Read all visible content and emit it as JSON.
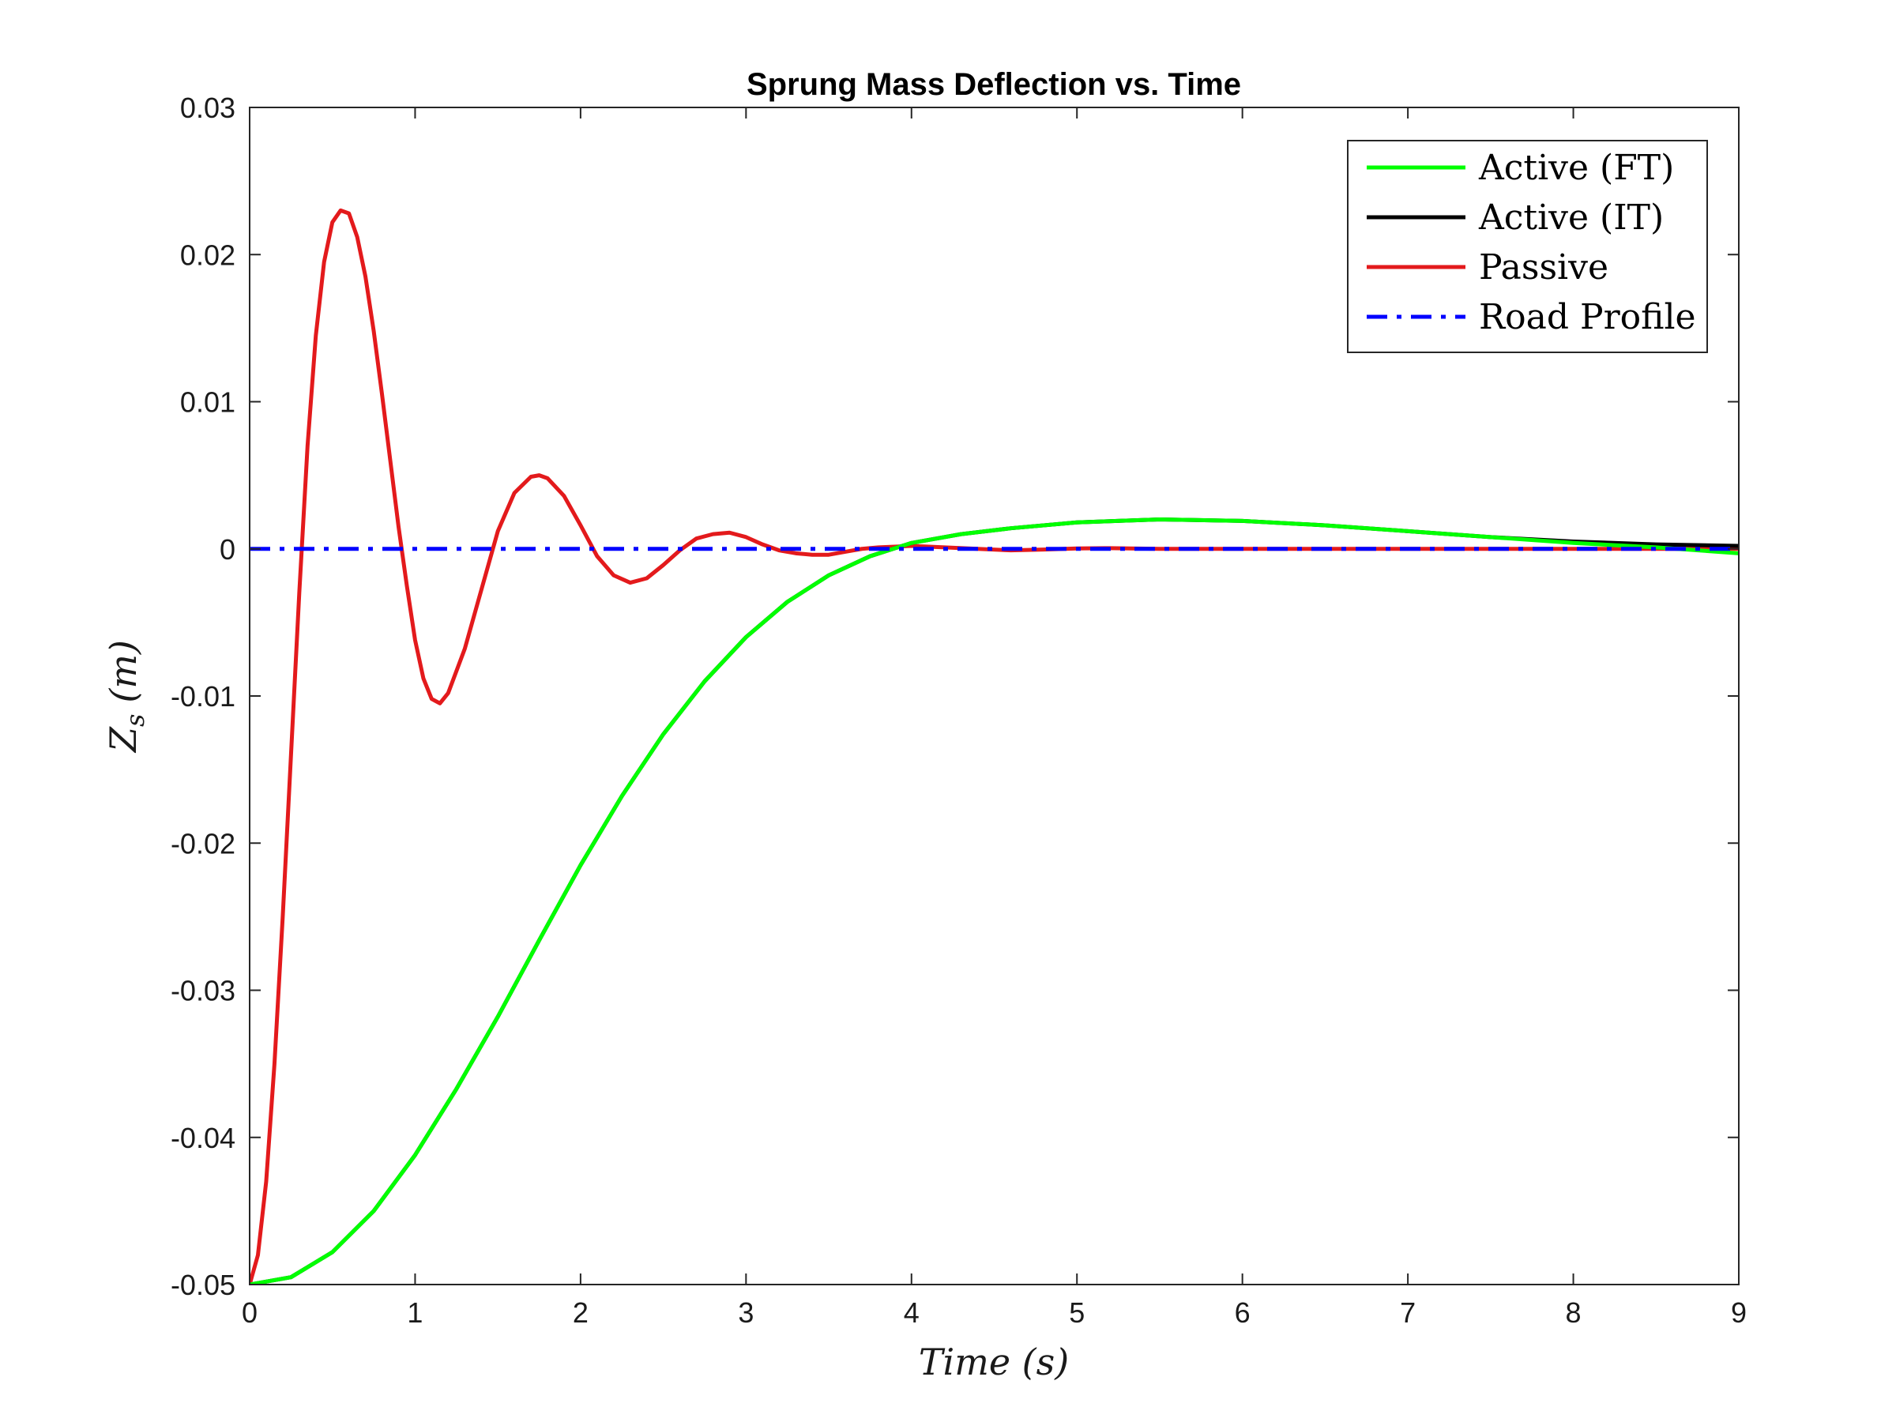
{
  "chart_data": {
    "type": "line",
    "title": "Sprung Mass Deflection vs. Time",
    "xlabel": "Time (s)",
    "ylabel": "Z_s (m)",
    "ylabel_main": "Z",
    "ylabel_sub": "s",
    "ylabel_rest": "(m)",
    "xlim": [
      0,
      9
    ],
    "ylim": [
      -0.05,
      0.03
    ],
    "x_ticks": [
      0,
      1,
      2,
      3,
      4,
      5,
      6,
      7,
      8,
      9
    ],
    "x_tick_labels": [
      "0",
      "1",
      "2",
      "3",
      "4",
      "5",
      "6",
      "7",
      "8",
      "9"
    ],
    "y_ticks": [
      -0.05,
      -0.04,
      -0.03,
      -0.02,
      -0.01,
      0,
      0.01,
      0.02,
      0.03
    ],
    "y_tick_labels": [
      "-0.05",
      "-0.04",
      "-0.03",
      "-0.02",
      "-0.01",
      "0",
      "0.01",
      "0.02",
      "0.03"
    ],
    "grid": false,
    "legend_position": "top-right",
    "series": [
      {
        "name": "Active (FT)",
        "color": "#00ff00",
        "style": "solid",
        "points": [
          [
            0,
            -0.05
          ],
          [
            0.25,
            -0.0495
          ],
          [
            0.5,
            -0.0478
          ],
          [
            0.75,
            -0.045
          ],
          [
            1,
            -0.0412
          ],
          [
            1.25,
            -0.0367
          ],
          [
            1.5,
            -0.0318
          ],
          [
            1.75,
            -0.0266
          ],
          [
            2,
            -0.0215
          ],
          [
            2.25,
            -0.0168
          ],
          [
            2.5,
            -0.0126
          ],
          [
            2.75,
            -0.009
          ],
          [
            3,
            -0.006
          ],
          [
            3.25,
            -0.0036
          ],
          [
            3.5,
            -0.0018
          ],
          [
            3.75,
            -0.0005
          ],
          [
            4,
            0.0004
          ],
          [
            4.3,
            0.001
          ],
          [
            4.6,
            0.0014
          ],
          [
            5,
            0.0018
          ],
          [
            5.5,
            0.002
          ],
          [
            6,
            0.0019
          ],
          [
            6.5,
            0.0016
          ],
          [
            7,
            0.0012
          ],
          [
            7.5,
            0.0008
          ],
          [
            8,
            0.0004
          ],
          [
            8.5,
            0.0001
          ],
          [
            9,
            -0.0003
          ]
        ]
      },
      {
        "name": "Active (IT)",
        "color": "#000000",
        "style": "solid",
        "points": [
          [
            0,
            -0.05
          ],
          [
            0.25,
            -0.0495
          ],
          [
            0.5,
            -0.0478
          ],
          [
            0.75,
            -0.045
          ],
          [
            1,
            -0.0412
          ],
          [
            1.25,
            -0.0367
          ],
          [
            1.5,
            -0.0318
          ],
          [
            1.75,
            -0.0266
          ],
          [
            2,
            -0.0215
          ],
          [
            2.25,
            -0.0168
          ],
          [
            2.5,
            -0.0126
          ],
          [
            2.75,
            -0.009
          ],
          [
            3,
            -0.006
          ],
          [
            3.25,
            -0.0036
          ],
          [
            3.5,
            -0.0018
          ],
          [
            3.75,
            -0.0005
          ],
          [
            4,
            0.0004
          ],
          [
            4.3,
            0.001
          ],
          [
            4.6,
            0.0014
          ],
          [
            5,
            0.0018
          ],
          [
            5.5,
            0.002
          ],
          [
            6,
            0.0019
          ],
          [
            6.5,
            0.0016
          ],
          [
            7,
            0.0012
          ],
          [
            7.5,
            0.0008
          ],
          [
            8,
            0.0005
          ],
          [
            8.5,
            0.0003
          ],
          [
            9,
            0.0002
          ]
        ]
      },
      {
        "name": "Passive",
        "color": "#e31a1c",
        "style": "solid",
        "points": [
          [
            0,
            -0.05
          ],
          [
            0.05,
            -0.048
          ],
          [
            0.1,
            -0.043
          ],
          [
            0.15,
            -0.035
          ],
          [
            0.2,
            -0.025
          ],
          [
            0.25,
            -0.014
          ],
          [
            0.3,
            -0.003
          ],
          [
            0.35,
            0.007
          ],
          [
            0.4,
            0.0145
          ],
          [
            0.45,
            0.0195
          ],
          [
            0.5,
            0.0222
          ],
          [
            0.55,
            0.023
          ],
          [
            0.6,
            0.0228
          ],
          [
            0.65,
            0.0212
          ],
          [
            0.7,
            0.0185
          ],
          [
            0.75,
            0.0148
          ],
          [
            0.8,
            0.0105
          ],
          [
            0.85,
            0.006
          ],
          [
            0.9,
            0.0015
          ],
          [
            0.95,
            -0.0025
          ],
          [
            1,
            -0.0062
          ],
          [
            1.05,
            -0.0088
          ],
          [
            1.1,
            -0.0102
          ],
          [
            1.15,
            -0.0105
          ],
          [
            1.2,
            -0.0098
          ],
          [
            1.3,
            -0.0068
          ],
          [
            1.4,
            -0.0028
          ],
          [
            1.5,
            0.0012
          ],
          [
            1.6,
            0.0038
          ],
          [
            1.7,
            0.0049
          ],
          [
            1.75,
            0.005
          ],
          [
            1.8,
            0.0048
          ],
          [
            1.9,
            0.0036
          ],
          [
            2,
            0.0016
          ],
          [
            2.1,
            -0.0005
          ],
          [
            2.2,
            -0.0018
          ],
          [
            2.3,
            -0.0023
          ],
          [
            2.4,
            -0.002
          ],
          [
            2.5,
            -0.0011
          ],
          [
            2.6,
            -0.0001
          ],
          [
            2.7,
            0.0007
          ],
          [
            2.8,
            0.001
          ],
          [
            2.9,
            0.0011
          ],
          [
            3,
            0.0008
          ],
          [
            3.1,
            0.0003
          ],
          [
            3.2,
            -0.0001
          ],
          [
            3.3,
            -0.0003
          ],
          [
            3.4,
            -0.0004
          ],
          [
            3.5,
            -0.0004
          ],
          [
            3.6,
            -0.0002
          ],
          [
            3.7,
            0
          ],
          [
            3.8,
            0.0001
          ],
          [
            4,
            0.0002
          ],
          [
            4.2,
            0.0001
          ],
          [
            4.4,
            0
          ],
          [
            4.6,
            -0.0001
          ],
          [
            4.8,
            -5e-05
          ],
          [
            5,
            3e-05
          ],
          [
            5.2,
            5e-05
          ],
          [
            5.5,
            0
          ],
          [
            6,
            0
          ],
          [
            7,
            0
          ],
          [
            8,
            0
          ],
          [
            9,
            0
          ]
        ]
      },
      {
        "name": "Road Profile",
        "color": "#0000ff",
        "style": "dashdot",
        "points": [
          [
            0,
            0
          ],
          [
            9,
            0
          ]
        ]
      }
    ]
  }
}
